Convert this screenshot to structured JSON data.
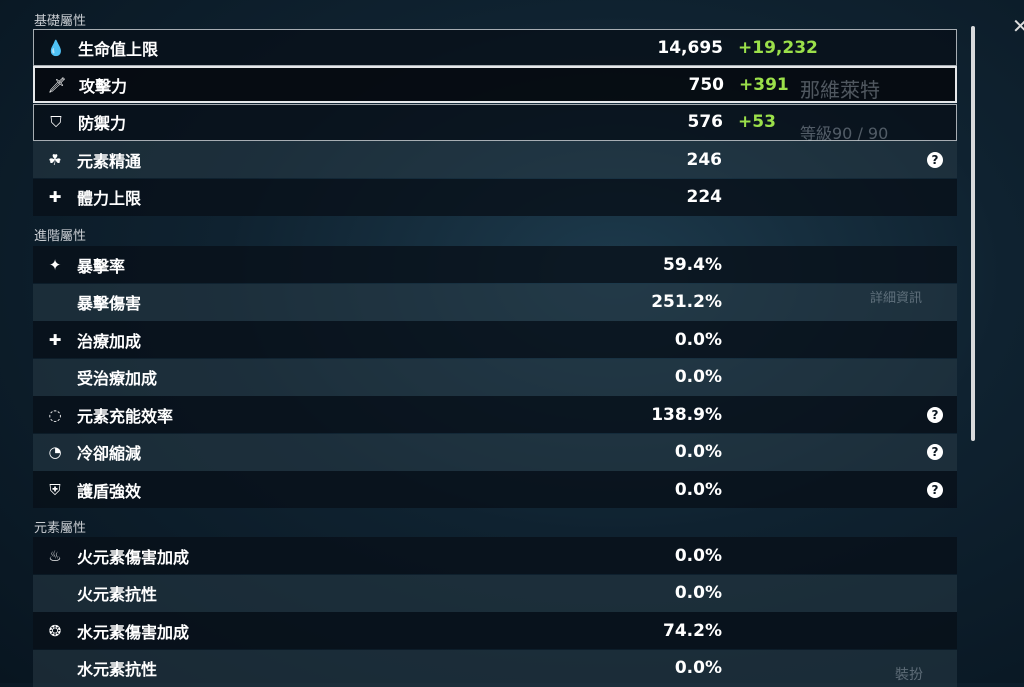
{
  "sections": {
    "basic": "基礎屬性",
    "advanced": "進階屬性",
    "element": "元素屬性"
  },
  "basic": [
    {
      "icon": "hp-droplet-icon",
      "glyph": "💧",
      "label": "生命值上限",
      "value": "14,695",
      "bonus": "+19,232"
    },
    {
      "icon": "sword-icon",
      "glyph": "🗡",
      "label": "攻擊力",
      "value": "750",
      "bonus": "+391"
    },
    {
      "icon": "shield-icon",
      "glyph": "⛉",
      "label": "防禦力",
      "value": "576",
      "bonus": "+53"
    },
    {
      "icon": "elemental-mastery-icon",
      "glyph": "☘",
      "label": "元素精通",
      "value": "246",
      "bonus": "",
      "help": true
    },
    {
      "icon": "stamina-icon",
      "glyph": "✚",
      "label": "體力上限",
      "value": "224",
      "bonus": ""
    }
  ],
  "advanced": [
    {
      "icon": "crit-rate-icon",
      "glyph": "✦",
      "label": "暴擊率",
      "value": "59.4%"
    },
    {
      "icon": "",
      "glyph": "",
      "label": "暴擊傷害",
      "value": "251.2%"
    },
    {
      "icon": "healing-cross-icon",
      "glyph": "✚",
      "label": "治療加成",
      "value": "0.0%"
    },
    {
      "icon": "",
      "glyph": "",
      "label": "受治療加成",
      "value": "0.0%"
    },
    {
      "icon": "energy-recharge-icon",
      "glyph": "◌",
      "label": "元素充能效率",
      "value": "138.9%",
      "help": true
    },
    {
      "icon": "cooldown-icon",
      "glyph": "◔",
      "label": "冷卻縮減",
      "value": "0.0%",
      "help": true
    },
    {
      "icon": "shield-strength-icon",
      "glyph": "⛨",
      "label": "護盾強效",
      "value": "0.0%",
      "help": true
    }
  ],
  "element": [
    {
      "icon": "pyro-icon",
      "glyph": "♨",
      "label": "火元素傷害加成",
      "value": "0.0%"
    },
    {
      "icon": "",
      "glyph": "",
      "label": "火元素抗性",
      "value": "0.0%"
    },
    {
      "icon": "hydro-icon",
      "glyph": "❂",
      "label": "水元素傷害加成",
      "value": "74.2%"
    },
    {
      "icon": "",
      "glyph": "",
      "label": "水元素抗性",
      "value": "0.0%"
    }
  ],
  "help_glyph": "?",
  "close_glyph": "✕",
  "background": {
    "name": "那維萊特",
    "level": "等級90 / 90",
    "details_button": "詳細資訊",
    "equip_button": "裝扮"
  }
}
